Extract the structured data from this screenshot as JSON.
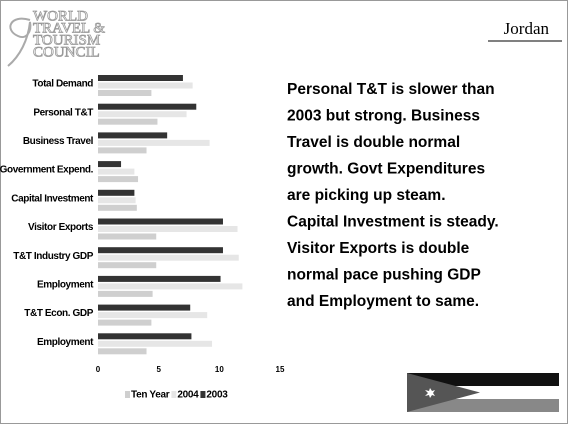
{
  "logo_lines": [
    "WORLD",
    "TRAVEL &",
    "TOURISM",
    "COUNCIL"
  ],
  "country": "Jordan",
  "body_lines": [
    "Personal T&T is slower than",
    "2003 but strong. Business",
    "Travel is double normal",
    "growth. Govt Expenditures",
    "are picking up steam.",
    "Capital Investment is steady.",
    "Visitor Exports is double",
    "normal pace pushing GDP",
    "and Employment to same."
  ],
  "chart_data": {
    "type": "bar",
    "orientation": "horizontal",
    "categories": [
      "Total Demand",
      "Personal T&T",
      "Business Travel",
      "Government Expend.",
      "Capital Investment",
      "Visitor Exports",
      "T&T Industry GDP",
      "Employment",
      "T&T Econ. GDP",
      "Employment"
    ],
    "series": [
      {
        "name": "Ten Year",
        "color": "#cfcfcf",
        "values": [
          4.4,
          4.9,
          4.0,
          3.3,
          3.2,
          4.8,
          4.8,
          4.5,
          4.4,
          4.0
        ]
      },
      {
        "name": "2004",
        "color": "#e6e6e6",
        "values": [
          7.8,
          7.3,
          9.2,
          3.0,
          3.1,
          11.5,
          11.6,
          11.9,
          9.0,
          9.4
        ]
      },
      {
        "name": "2003",
        "color": "#333333",
        "values": [
          7.0,
          8.1,
          5.7,
          1.9,
          3.0,
          10.3,
          10.3,
          10.1,
          7.6,
          7.7
        ]
      }
    ],
    "xlim": [
      0,
      15
    ],
    "xticks": [
      0,
      5,
      10,
      15
    ]
  }
}
